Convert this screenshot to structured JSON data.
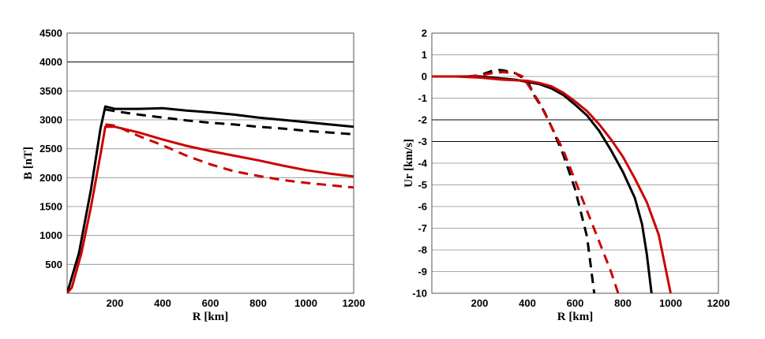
{
  "chart_data": [
    {
      "type": "line",
      "xlabel": "R [km]",
      "ylabel": "B [nT]",
      "xlim": [
        0,
        1200
      ],
      "ylim": [
        0,
        4500
      ],
      "xticks": [
        200,
        400,
        600,
        800,
        1000,
        1200
      ],
      "yticks": [
        500,
        1000,
        1500,
        2000,
        2500,
        3000,
        3500,
        4000,
        4500
      ],
      "dark_gridlines": [
        4000
      ],
      "series": [
        {
          "name": "black-solid",
          "color": "#000000",
          "dash": false,
          "points": [
            [
              0,
              0
            ],
            [
              50,
              700
            ],
            [
              100,
              1800
            ],
            [
              140,
              2850
            ],
            [
              160,
              3230
            ],
            [
              200,
              3190
            ],
            [
              300,
              3190
            ],
            [
              400,
              3200
            ],
            [
              500,
              3160
            ],
            [
              600,
              3130
            ],
            [
              700,
              3090
            ],
            [
              800,
              3040
            ],
            [
              900,
              3000
            ],
            [
              1000,
              2960
            ],
            [
              1100,
              2920
            ],
            [
              1200,
              2880
            ]
          ]
        },
        {
          "name": "black-dashed",
          "color": "#000000",
          "dash": true,
          "points": [
            [
              160,
              3180
            ],
            [
              200,
              3150
            ],
            [
              300,
              3090
            ],
            [
              400,
              3040
            ],
            [
              500,
              2990
            ],
            [
              600,
              2950
            ],
            [
              700,
              2920
            ],
            [
              800,
              2880
            ],
            [
              900,
              2850
            ],
            [
              1000,
              2810
            ],
            [
              1100,
              2780
            ],
            [
              1200,
              2750
            ]
          ]
        },
        {
          "name": "red-solid",
          "color": "#cc0000",
          "dash": false,
          "points": [
            [
              0,
              0
            ],
            [
              20,
              100
            ],
            [
              60,
              700
            ],
            [
              100,
              1500
            ],
            [
              140,
              2400
            ],
            [
              160,
              2880
            ],
            [
              200,
              2880
            ],
            [
              300,
              2780
            ],
            [
              400,
              2660
            ],
            [
              500,
              2550
            ],
            [
              600,
              2460
            ],
            [
              700,
              2380
            ],
            [
              800,
              2300
            ],
            [
              900,
              2210
            ],
            [
              1000,
              2130
            ],
            [
              1100,
              2070
            ],
            [
              1200,
              2020
            ]
          ]
        },
        {
          "name": "red-dashed",
          "color": "#cc0000",
          "dash": true,
          "points": [
            [
              160,
              2920
            ],
            [
              200,
              2900
            ],
            [
              300,
              2720
            ],
            [
              400,
              2560
            ],
            [
              500,
              2380
            ],
            [
              600,
              2230
            ],
            [
              700,
              2110
            ],
            [
              800,
              2030
            ],
            [
              900,
              1960
            ],
            [
              1000,
              1910
            ],
            [
              1100,
              1870
            ],
            [
              1200,
              1830
            ]
          ]
        }
      ]
    },
    {
      "type": "line",
      "xlabel": "R [km]",
      "ylabel": "Ur [km/s]",
      "xlim": [
        0,
        1200
      ],
      "ylim": [
        -10,
        2
      ],
      "xticks": [
        200,
        400,
        600,
        800,
        1000,
        1200
      ],
      "yticks": [
        2,
        1,
        0,
        -1,
        -2,
        -3,
        -4,
        -5,
        -6,
        -7,
        -8,
        -9,
        -10
      ],
      "dark_gridlines": [
        -2,
        -3
      ],
      "series": [
        {
          "name": "black-solid",
          "color": "#000000",
          "dash": false,
          "points": [
            [
              0,
              0
            ],
            [
              150,
              0
            ],
            [
              200,
              0
            ],
            [
              250,
              -0.05
            ],
            [
              300,
              -0.1
            ],
            [
              350,
              -0.15
            ],
            [
              400,
              -0.25
            ],
            [
              450,
              -0.35
            ],
            [
              500,
              -0.55
            ],
            [
              550,
              -0.85
            ],
            [
              600,
              -1.3
            ],
            [
              650,
              -1.8
            ],
            [
              700,
              -2.5
            ],
            [
              750,
              -3.4
            ],
            [
              800,
              -4.4
            ],
            [
              850,
              -5.6
            ],
            [
              880,
              -6.8
            ],
            [
              900,
              -8.2
            ],
            [
              920,
              -10
            ]
          ]
        },
        {
          "name": "black-dashed",
          "color": "#000000",
          "dash": true,
          "points": [
            [
              150,
              0
            ],
            [
              200,
              0.05
            ],
            [
              250,
              0.25
            ],
            [
              280,
              0.3
            ],
            [
              300,
              0.28
            ],
            [
              350,
              0.15
            ],
            [
              400,
              -0.2
            ],
            [
              430,
              -0.9
            ],
            [
              470,
              -1.6
            ],
            [
              500,
              -2.3
            ],
            [
              550,
              -3.6
            ],
            [
              600,
              -5.2
            ],
            [
              650,
              -7.4
            ],
            [
              680,
              -10
            ]
          ]
        },
        {
          "name": "red-solid",
          "color": "#cc0000",
          "dash": false,
          "points": [
            [
              0,
              0
            ],
            [
              100,
              0
            ],
            [
              200,
              -0.05
            ],
            [
              300,
              -0.15
            ],
            [
              400,
              -0.2
            ],
            [
              450,
              -0.3
            ],
            [
              500,
              -0.45
            ],
            [
              550,
              -0.75
            ],
            [
              600,
              -1.15
            ],
            [
              650,
              -1.6
            ],
            [
              700,
              -2.2
            ],
            [
              750,
              -2.9
            ],
            [
              800,
              -3.7
            ],
            [
              850,
              -4.7
            ],
            [
              900,
              -5.8
            ],
            [
              950,
              -7.3
            ],
            [
              1000,
              -10
            ]
          ]
        },
        {
          "name": "red-dashed",
          "color": "#cc0000",
          "dash": true,
          "points": [
            [
              150,
              0
            ],
            [
              200,
              0.05
            ],
            [
              250,
              0.15
            ],
            [
              300,
              0.2
            ],
            [
              350,
              0.15
            ],
            [
              380,
              0
            ],
            [
              410,
              -0.5
            ],
            [
              450,
              -1.2
            ],
            [
              500,
              -2.3
            ],
            [
              550,
              -3.4
            ],
            [
              600,
              -4.8
            ],
            [
              650,
              -6.2
            ],
            [
              700,
              -7.6
            ],
            [
              750,
              -9
            ],
            [
              780,
              -10
            ]
          ]
        }
      ]
    }
  ]
}
